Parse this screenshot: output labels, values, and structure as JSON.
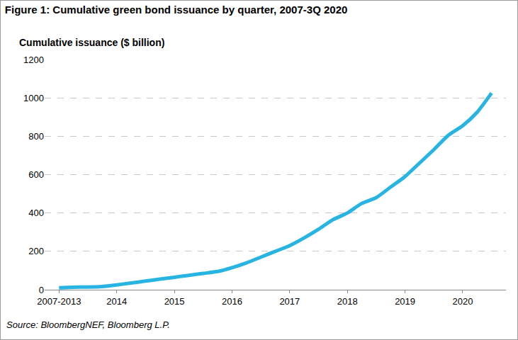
{
  "chart_data": {
    "type": "line",
    "title": "Figure 1: Cumulative green bond issuance by quarter, 2007-3Q 2020",
    "y_label": "Cumulative issuance ($ billion)",
    "source": "Source: BloombergNEF, Bloomberg L.P.",
    "categories": [
      "2007-2013",
      null,
      null,
      null,
      "2014",
      null,
      null,
      null,
      "2015",
      null,
      null,
      null,
      "2016",
      null,
      null,
      null,
      "2017",
      null,
      null,
      null,
      "2018",
      null,
      null,
      null,
      "2019",
      null,
      null,
      null,
      "2020",
      null,
      null
    ],
    "values": [
      10,
      13,
      14,
      17,
      25,
      35,
      45,
      55,
      65,
      75,
      85,
      95,
      115,
      140,
      170,
      200,
      230,
      270,
      315,
      365,
      400,
      450,
      480,
      535,
      590,
      660,
      730,
      805,
      855,
      925,
      1025
    ],
    "color": "#27b4e3",
    "ylim": [
      0,
      1200
    ],
    "yticks": [
      0,
      200,
      400,
      600,
      800,
      1000,
      1200
    ],
    "grid": true
  }
}
